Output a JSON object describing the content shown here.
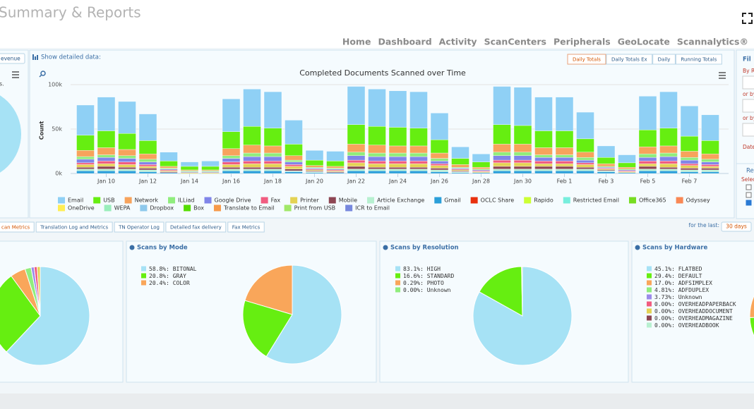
{
  "header": {
    "title": "Summary & Reports"
  },
  "nav": [
    "Home",
    "Dashboard",
    "Activity",
    "ScanCenters",
    "Peripherals",
    "GeoLocate",
    "Scannalytics®"
  ],
  "left_panel": {
    "button": "evenue",
    "text": "s."
  },
  "detail": {
    "label": "Show detailed data:",
    "buttons": [
      "Daily Totals",
      "Daily Totals Ex",
      "Daily",
      "Running Totals"
    ]
  },
  "filter_panel": {
    "title": "Fil",
    "labels": [
      "By R",
      "or by",
      "or by",
      "Date"
    ],
    "section": "Re",
    "select": "Selec"
  },
  "tabs": [
    "can Metrics",
    "Translation Log and Metrics",
    "TN Operator Log",
    "Detailed fax delivery",
    "Fax Metrics"
  ],
  "range": {
    "label": "for the last:",
    "button": "30 days"
  },
  "chart_data": [
    {
      "type": "stacked_bar",
      "title": "Completed Documents Scanned over Time",
      "y_label": "Count",
      "categories": [
        null,
        "Jan 10",
        null,
        "Jan 12",
        null,
        "Jan 14",
        null,
        "Jan 16",
        null,
        "Jan 18",
        null,
        "Jan 20",
        null,
        "Jan 22",
        null,
        "Jan 24",
        null,
        "Jan 26",
        null,
        "Jan 28",
        null,
        "Jan 30",
        null,
        "Feb 1",
        null,
        "Feb 3",
        null,
        "Feb 5",
        null,
        "Feb 7",
        null
      ],
      "ylim": [
        0,
        100000
      ],
      "yticks": [
        {
          "value": 0,
          "label": "0k"
        },
        {
          "value": 50000,
          "label": "50k"
        },
        {
          "value": 100000,
          "label": "100k"
        }
      ],
      "grid": true,
      "series": [
        {
          "name": "Email",
          "color": "#8fd0f5",
          "values": [
            34000,
            38000,
            36000,
            30000,
            10000,
            5000,
            6000,
            37000,
            42000,
            41000,
            27000,
            11000,
            11000,
            43000,
            42000,
            41000,
            41000,
            30000,
            13000,
            9000,
            43000,
            43000,
            38000,
            38000,
            30000,
            13000,
            9000,
            38000,
            41000,
            34000,
            29000
          ]
        },
        {
          "name": "USB",
          "color": "#66ee11",
          "values": [
            17000,
            19000,
            18000,
            15000,
            6000,
            4000,
            4000,
            19000,
            21000,
            20000,
            13000,
            6000,
            6000,
            22000,
            21000,
            21000,
            20000,
            15000,
            7000,
            6000,
            22000,
            21000,
            19000,
            19000,
            15000,
            7000,
            5000,
            19000,
            20000,
            17000,
            15000
          ]
        },
        {
          "name": "Network",
          "color": "#f7a35c",
          "values": [
            7000,
            8000,
            7000,
            6000,
            2000,
            1000,
            1000,
            8000,
            9000,
            8000,
            5000,
            2000,
            2000,
            9000,
            9000,
            8000,
            8000,
            6000,
            3000,
            2000,
            9000,
            9000,
            8000,
            8000,
            6000,
            3000,
            2000,
            8000,
            8000,
            7000,
            6000
          ]
        },
        {
          "name": "ILLiad",
          "color": "#90ed7d",
          "values": [
            3000,
            3000,
            3000,
            3000,
            1000,
            1000,
            1000,
            3000,
            4000,
            4000,
            2000,
            1000,
            1000,
            4000,
            4000,
            4000,
            4000,
            3000,
            1000,
            1000,
            4000,
            4000,
            3000,
            3000,
            3000,
            1000,
            1000,
            4000,
            4000,
            3000,
            3000
          ]
        },
        {
          "name": "Google Drive",
          "color": "#8085e9",
          "values": [
            4000,
            4000,
            4000,
            3000,
            1000,
            1000,
            1000,
            4000,
            5000,
            5000,
            3000,
            1000,
            1000,
            5000,
            5000,
            5000,
            5000,
            3000,
            1000,
            1000,
            5000,
            5000,
            4000,
            4000,
            3000,
            1000,
            1000,
            4000,
            5000,
            4000,
            3000
          ]
        },
        {
          "name": "Fax",
          "color": "#f15c80",
          "values": [
            2000,
            3000,
            3000,
            2000,
            1000,
            0,
            0,
            3000,
            3000,
            3000,
            2000,
            1000,
            1000,
            3000,
            3000,
            3000,
            3000,
            2000,
            1000,
            1000,
            3000,
            3000,
            3000,
            3000,
            2000,
            1000,
            1000,
            3000,
            3000,
            2000,
            2000
          ]
        },
        {
          "name": "Printer",
          "color": "#e4d354",
          "values": [
            3000,
            3000,
            3000,
            2000,
            1000,
            1000,
            1000,
            3000,
            4000,
            4000,
            3000,
            1000,
            1000,
            4000,
            4000,
            4000,
            4000,
            3000,
            1000,
            1000,
            4000,
            4000,
            3000,
            3000,
            3000,
            1000,
            1000,
            3000,
            4000,
            3000,
            2000
          ]
        },
        {
          "name": "Mobile",
          "color": "#8d4653",
          "values": [
            2000,
            3000,
            2000,
            2000,
            1000,
            0,
            0,
            2000,
            2000,
            2000,
            2000,
            1000,
            1000,
            3000,
            2000,
            2000,
            2000,
            2000,
            1000,
            0,
            3000,
            3000,
            3000,
            3000,
            2000,
            1000,
            0,
            3000,
            2000,
            2000,
            2000
          ]
        },
        {
          "name": "Article Exchange",
          "color": "#b7f0d0",
          "values": [
            2000,
            2000,
            2000,
            2000,
            0,
            0,
            0,
            2000,
            2000,
            2000,
            1000,
            1000,
            0,
            2000,
            2000,
            2000,
            2000,
            2000,
            1000,
            0,
            2000,
            2000,
            2000,
            2000,
            2000,
            1000,
            0,
            2000,
            2000,
            2000,
            2000
          ]
        },
        {
          "name": "Gmail",
          "color": "#2b9fd9",
          "values": [
            3000,
            3000,
            3000,
            2000,
            1000,
            0,
            0,
            3000,
            3000,
            3000,
            2000,
            1000,
            1000,
            3000,
            3000,
            3000,
            3000,
            2000,
            1000,
            1000,
            3000,
            3000,
            3000,
            3000,
            3000,
            2000,
            1000,
            3000,
            3000,
            2000,
            2000
          ]
        },
        {
          "name": "OCLC Share",
          "color": "#e8300e",
          "values": [
            0,
            0,
            0,
            0,
            0,
            0,
            0,
            0,
            0,
            0,
            0,
            0,
            0,
            0,
            0,
            0,
            0,
            0,
            0,
            0,
            0,
            0,
            0,
            0,
            0,
            0,
            0,
            0,
            0,
            0,
            0
          ]
        },
        {
          "name": "Rapido",
          "color": "#ccff33",
          "values": [
            0,
            0,
            0,
            0,
            0,
            0,
            0,
            0,
            0,
            0,
            0,
            0,
            0,
            0,
            0,
            0,
            0,
            0,
            0,
            0,
            0,
            0,
            0,
            0,
            0,
            0,
            0,
            0,
            0,
            0,
            0
          ]
        },
        {
          "name": "Restricted Email",
          "color": "#77eedd",
          "values": [
            0,
            0,
            0,
            0,
            0,
            0,
            0,
            0,
            0,
            0,
            0,
            0,
            0,
            0,
            0,
            0,
            0,
            0,
            0,
            0,
            0,
            0,
            0,
            0,
            0,
            0,
            0,
            0,
            0,
            0,
            0
          ]
        },
        {
          "name": "Office365",
          "color": "#77dd22",
          "values": [
            0,
            0,
            0,
            0,
            0,
            0,
            0,
            0,
            0,
            0,
            0,
            0,
            0,
            0,
            0,
            0,
            0,
            0,
            0,
            0,
            0,
            0,
            0,
            0,
            0,
            0,
            0,
            0,
            0,
            0,
            0
          ]
        },
        {
          "name": "Odyssey",
          "color": "#f98855",
          "values": [
            0,
            0,
            0,
            0,
            0,
            0,
            0,
            0,
            0,
            0,
            0,
            0,
            0,
            0,
            0,
            0,
            0,
            0,
            0,
            0,
            0,
            0,
            0,
            0,
            0,
            0,
            0,
            0,
            0,
            0,
            0
          ]
        },
        {
          "name": "OneDrive",
          "color": "#ffee55",
          "values": [
            0,
            0,
            0,
            0,
            0,
            0,
            0,
            0,
            0,
            0,
            0,
            0,
            0,
            0,
            0,
            0,
            0,
            0,
            0,
            0,
            0,
            0,
            0,
            0,
            0,
            0,
            0,
            0,
            0,
            0,
            0
          ]
        },
        {
          "name": "WEPA",
          "color": "#99eebb",
          "values": [
            0,
            0,
            0,
            0,
            0,
            0,
            0,
            0,
            0,
            0,
            0,
            0,
            0,
            0,
            0,
            0,
            0,
            0,
            0,
            0,
            0,
            0,
            0,
            0,
            0,
            0,
            0,
            0,
            0,
            0,
            0
          ]
        },
        {
          "name": "Dropbox",
          "color": "#8ec9ec",
          "values": [
            0,
            0,
            0,
            0,
            0,
            0,
            0,
            0,
            0,
            0,
            0,
            0,
            0,
            0,
            0,
            0,
            0,
            0,
            0,
            0,
            0,
            0,
            0,
            0,
            0,
            0,
            0,
            0,
            0,
            0,
            0
          ]
        },
        {
          "name": "Box",
          "color": "#55dd00",
          "values": [
            0,
            0,
            0,
            0,
            0,
            0,
            0,
            0,
            0,
            0,
            0,
            0,
            0,
            0,
            0,
            0,
            0,
            0,
            0,
            0,
            0,
            0,
            0,
            0,
            0,
            0,
            0,
            0,
            0,
            0,
            0
          ]
        },
        {
          "name": "Translate to Email",
          "color": "#f79a4a",
          "values": [
            0,
            0,
            0,
            0,
            0,
            0,
            0,
            0,
            0,
            0,
            0,
            0,
            0,
            0,
            0,
            0,
            0,
            0,
            0,
            0,
            0,
            0,
            0,
            0,
            0,
            0,
            0,
            0,
            0,
            0,
            0
          ]
        },
        {
          "name": "Print from USB",
          "color": "#a1e868",
          "values": [
            0,
            0,
            0,
            0,
            0,
            0,
            0,
            0,
            0,
            0,
            0,
            0,
            0,
            0,
            0,
            0,
            0,
            0,
            0,
            0,
            0,
            0,
            0,
            0,
            0,
            0,
            0,
            0,
            0,
            0,
            0
          ]
        },
        {
          "name": "ICR to Email",
          "color": "#7788dd",
          "values": [
            0,
            0,
            0,
            0,
            0,
            0,
            0,
            0,
            0,
            0,
            0,
            0,
            0,
            0,
            0,
            0,
            0,
            0,
            0,
            0,
            0,
            0,
            0,
            0,
            0,
            0,
            0,
            0,
            0,
            0,
            0
          ]
        }
      ]
    },
    {
      "type": "pie",
      "title": "Scans by Mode",
      "categories": [
        "BITONAL",
        "GRAY",
        "COLOR"
      ],
      "values": [
        58.8,
        20.8,
        20.4
      ],
      "value_labels": [
        "58.8%",
        "20.8%",
        "20.4%"
      ],
      "colors": [
        "#a6e2f5",
        "#66ee11",
        "#f9a65a"
      ]
    },
    {
      "type": "pie",
      "title": "Scans by Resolution",
      "categories": [
        "HIGH",
        "STANDARD",
        "PHOTO",
        "Unknown"
      ],
      "values": [
        83.1,
        16.6,
        0.29,
        0
      ],
      "value_labels": [
        "83.1%",
        "16.6%",
        "0.29%",
        "0.00%"
      ],
      "colors": [
        "#a6e2f5",
        "#66ee11",
        "#f9a65a",
        "#90ed7d"
      ]
    },
    {
      "type": "pie",
      "title": "Scans by Hardware",
      "categories": [
        "FLATBED",
        "DEFAULT",
        "ADFSIMPLEX",
        "ADFDUPLEX",
        "Unknown",
        "OVERHEADPAPERBACK",
        "OVERHEADDOCUMENT",
        "OVERHEADMAGAZINE",
        "OVERHEADBOOK"
      ],
      "values": [
        45.1,
        29.4,
        17.0,
        4.81,
        3.73,
        0,
        0,
        0,
        0
      ],
      "value_labels": [
        "45.1%",
        "29.4%",
        "17.0%",
        "4.81%",
        "3.73%",
        "0.00%",
        "0.00%",
        "0.00%",
        "0.00%"
      ],
      "colors": [
        "#a6e2f5",
        "#66ee11",
        "#f9a65a",
        "#90ed7d",
        "#9b8bea",
        "#f15c80",
        "#e4d354",
        "#8d4653",
        "#b7f0d0"
      ]
    },
    {
      "type": "pie",
      "values": [
        62,
        28,
        5,
        2,
        1,
        1,
        1
      ],
      "colors": [
        "#a6e2f5",
        "#66ee11",
        "#f9a65a",
        "#90ed7d",
        "#9b8bea",
        "#f15c80",
        "#e4d354"
      ]
    }
  ]
}
